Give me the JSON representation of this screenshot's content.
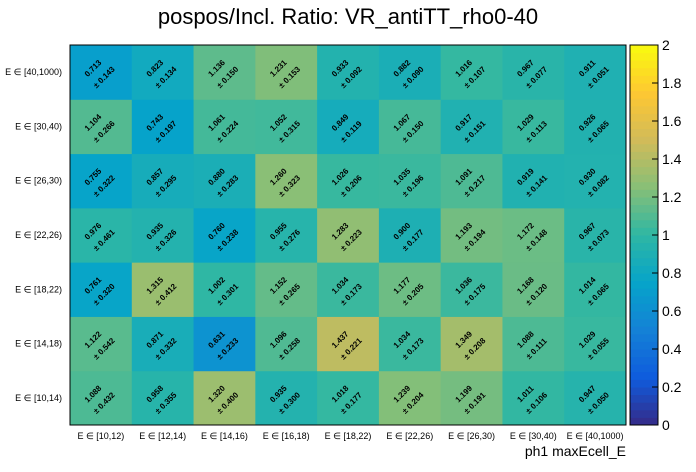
{
  "chart_data": {
    "type": "heatmap",
    "title": "pospos/Incl. Ratio: VR_antiTT_rho0-40",
    "xlabel": "ph1 maxEcell_E",
    "ylabel": "",
    "x_categories": [
      "E ∈ [10,12)",
      "E ∈ [12,14)",
      "E ∈ [14,16)",
      "E ∈ [16,18)",
      "E ∈ [18,22)",
      "E ∈ [22,26)",
      "E ∈ [26,30)",
      "E ∈ [30,40)",
      "E ∈ [40,1000)"
    ],
    "y_categories": [
      "E ∈ [10,14)",
      "E ∈ [14,18)",
      "E ∈ [18,22)",
      "E ∈ [22,26)",
      "E ∈ [26,30)",
      "E ∈ [30,40)",
      "E ∈ [40,1000)"
    ],
    "values": [
      [
        1.088,
        0.958,
        1.32,
        0.935,
        1.018,
        1.239,
        1.199,
        1.011,
        0.947
      ],
      [
        1.122,
        0.871,
        0.631,
        1.096,
        1.437,
        1.034,
        1.349,
        1.088,
        1.029
      ],
      [
        0.761,
        1.315,
        1.002,
        1.152,
        1.034,
        1.177,
        1.036,
        1.168,
        1.014
      ],
      [
        0.976,
        0.935,
        0.76,
        0.955,
        1.283,
        0.9,
        1.193,
        1.172,
        0.967
      ],
      [
        0.755,
        0.857,
        0.88,
        1.26,
        1.026,
        1.035,
        1.091,
        0.919,
        0.93
      ],
      [
        1.104,
        0.743,
        1.061,
        1.052,
        0.849,
        1.067,
        0.917,
        1.029,
        0.926
      ],
      [
        0.713,
        0.823,
        1.136,
        1.231,
        0.933,
        0.882,
        1.016,
        0.967,
        0.911
      ]
    ],
    "errors": [
      [
        0.432,
        0.355,
        0.4,
        0.3,
        0.177,
        0.204,
        0.191,
        0.106,
        0.05
      ],
      [
        0.542,
        0.332,
        0.233,
        0.258,
        0.221,
        0.173,
        0.208,
        0.111,
        0.055
      ],
      [
        0.32,
        0.412,
        0.301,
        0.265,
        0.173,
        0.205,
        0.175,
        0.12,
        0.065
      ],
      [
        0.461,
        0.326,
        0.238,
        0.276,
        0.223,
        0.177,
        0.194,
        0.148,
        0.073
      ],
      [
        0.322,
        0.295,
        0.283,
        0.323,
        0.206,
        0.196,
        0.217,
        0.141,
        0.082
      ],
      [
        0.266,
        0.197,
        0.224,
        0.315,
        0.119,
        0.15,
        0.151,
        0.113,
        0.065
      ],
      [
        0.143,
        0.134,
        0.15,
        0.153,
        0.092,
        0.09,
        0.107,
        0.077,
        0.051
      ]
    ],
    "zlim": [
      0,
      2
    ],
    "z_ticks": [
      "0",
      "0.2",
      "0.4",
      "0.6",
      "0.8",
      "1",
      "1.2",
      "1.4",
      "1.6",
      "1.8",
      "2"
    ],
    "colormap": [
      "#352a87",
      "#0f5cdd",
      "#1481d6",
      "#06a4ca",
      "#2eb7a4",
      "#87bf77",
      "#d1bb59",
      "#fec832",
      "#f9fb0e"
    ],
    "error_prefix": "± "
  }
}
